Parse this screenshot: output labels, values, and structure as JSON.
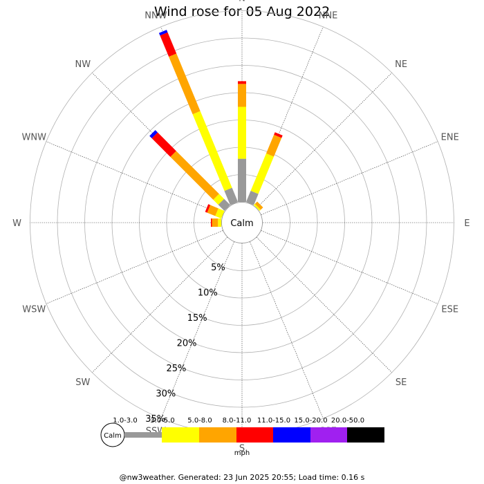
{
  "chart_data": {
    "type": "wind-rose",
    "title": "Wind rose for 05 Aug 2022",
    "directions": [
      "N",
      "NNE",
      "NE",
      "ENE",
      "E",
      "ESE",
      "SE",
      "SSE",
      "S",
      "SSW",
      "SW",
      "WSW",
      "W",
      "WNW",
      "NW",
      "NNW"
    ],
    "calm_label": "Calm",
    "radial_ticks": [
      5,
      10,
      15,
      20,
      25,
      30,
      35
    ],
    "radial_tick_labels": [
      "5%",
      "10%",
      "15%",
      "20%",
      "25%",
      "30%",
      "35%"
    ],
    "r_max": 35,
    "speed_unit": "mph",
    "speed_bins": [
      {
        "label": "1.0-3.0",
        "color": "#999999"
      },
      {
        "label": "3.0-5.0",
        "color": "#ffff00"
      },
      {
        "label": "5.0-8.0",
        "color": "#ffa500"
      },
      {
        "label": "8.0-11.0",
        "color": "#ff0000"
      },
      {
        "label": "11.0-15.0",
        "color": "#0000ff"
      },
      {
        "label": "15.0-20.0",
        "color": "#a020f0"
      },
      {
        "label": "20.0-50.0",
        "color": "#000000"
      }
    ],
    "series": [
      {
        "direction": "N",
        "values": [
          7.9,
          9.5,
          4.2,
          0.5,
          0,
          0,
          0
        ]
      },
      {
        "direction": "NNE",
        "values": [
          2.2,
          7.4,
          3.7,
          0.5,
          0,
          0,
          0
        ]
      },
      {
        "direction": "NE",
        "values": [
          0.0,
          0.3,
          0.6,
          0,
          0,
          0,
          0
        ]
      },
      {
        "direction": "ENE",
        "values": [
          0,
          0,
          0,
          0,
          0,
          0,
          0
        ]
      },
      {
        "direction": "E",
        "values": [
          0,
          0,
          0,
          0,
          0,
          0,
          0
        ]
      },
      {
        "direction": "ESE",
        "values": [
          0,
          0,
          0,
          0,
          0,
          0,
          0
        ]
      },
      {
        "direction": "SE",
        "values": [
          0,
          0,
          0,
          0,
          0,
          0,
          0
        ]
      },
      {
        "direction": "SSE",
        "values": [
          0,
          0,
          0,
          0,
          0,
          0,
          0
        ]
      },
      {
        "direction": "S",
        "values": [
          0,
          0,
          0,
          0,
          0,
          0,
          0
        ]
      },
      {
        "direction": "SSW",
        "values": [
          0,
          0,
          0,
          0,
          0,
          0,
          0
        ]
      },
      {
        "direction": "SW",
        "values": [
          0,
          0,
          0,
          0,
          0,
          0,
          0
        ]
      },
      {
        "direction": "WSW",
        "values": [
          0,
          0,
          0,
          0,
          0,
          0,
          0
        ]
      },
      {
        "direction": "W",
        "values": [
          0,
          0.6,
          1.1,
          0.2,
          0,
          0,
          0
        ]
      },
      {
        "direction": "WNW",
        "values": [
          0,
          1.2,
          1.6,
          0.4,
          0,
          0,
          0
        ]
      },
      {
        "direction": "NW",
        "values": [
          1.6,
          1.3,
          11.1,
          4.8,
          0.6,
          0,
          0
        ]
      },
      {
        "direction": "NNW",
        "values": [
          2.8,
          15.2,
          11.4,
          4.2,
          0.5,
          0,
          0
        ]
      }
    ]
  },
  "footer": {
    "text": "@nw3weather. Generated: 23 Jun 2025 20:55; Load time: 0.16 s"
  }
}
